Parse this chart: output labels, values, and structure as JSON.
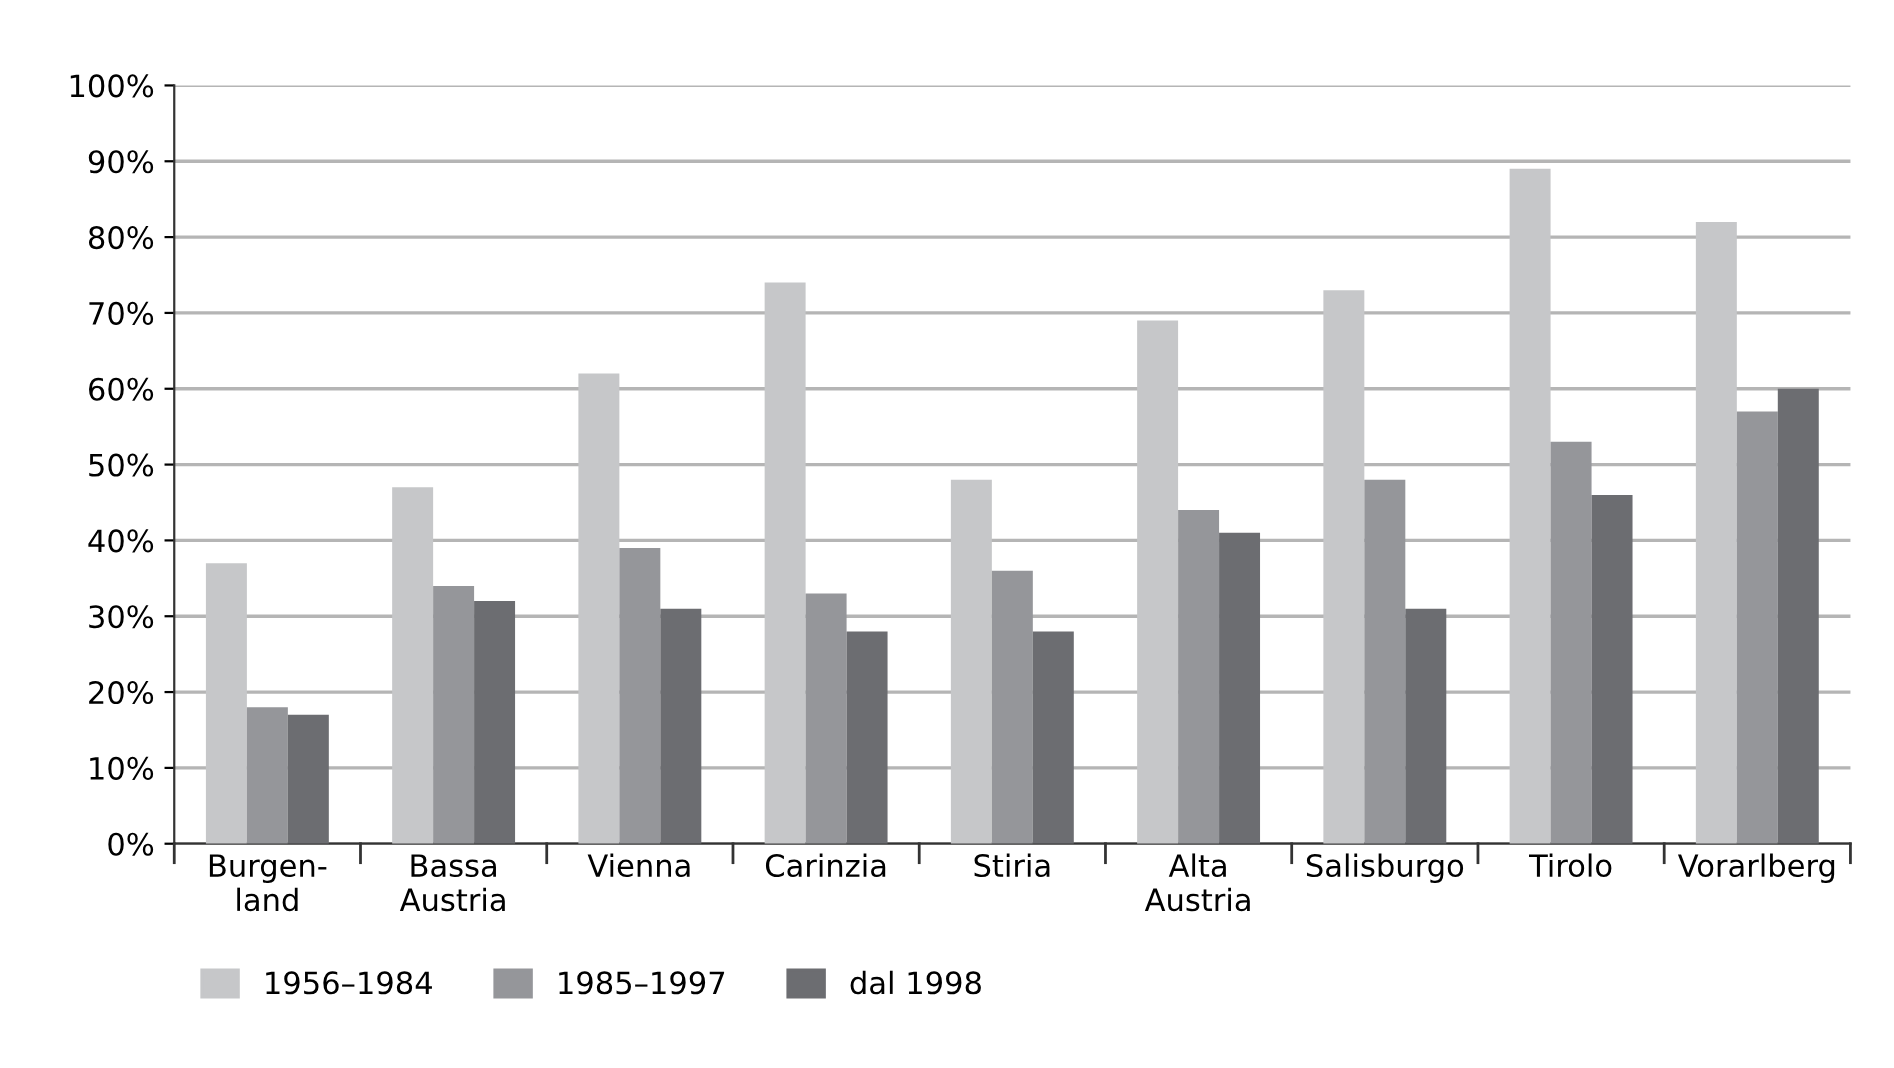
{
  "chart_data": {
    "type": "bar",
    "categories": [
      "Burgen-\nland",
      "Bassa\nAustria",
      "Vienna",
      "Carinzia",
      "Stiria",
      "Alta\nAustria",
      "Salisburgo",
      "Tirolo",
      "Vorarlberg"
    ],
    "series": [
      {
        "name": "1956–1984",
        "color": "#c6c7c9",
        "values": [
          37,
          47,
          62,
          74,
          48,
          69,
          73,
          89,
          82
        ]
      },
      {
        "name": "1985–1997",
        "color": "#95969a",
        "values": [
          18,
          34,
          39,
          33,
          36,
          44,
          48,
          53,
          57
        ]
      },
      {
        "name": "dal 1998",
        "color": "#6c6d71",
        "values": [
          17,
          32,
          31,
          28,
          28,
          41,
          31,
          46,
          60
        ]
      }
    ],
    "ylim": [
      0,
      100
    ],
    "yticks": [
      {
        "value": 0,
        "label": "0%"
      },
      {
        "value": 10,
        "label": "10%"
      },
      {
        "value": 20,
        "label": "20%"
      },
      {
        "value": 30,
        "label": "30%"
      },
      {
        "value": 40,
        "label": "40%"
      },
      {
        "value": 50,
        "label": "50%"
      },
      {
        "value": 60,
        "label": "60%"
      },
      {
        "value": 70,
        "label": "70%"
      },
      {
        "value": 80,
        "label": "80%"
      },
      {
        "value": 90,
        "label": "90%"
      },
      {
        "value": 100,
        "label": "100%"
      }
    ],
    "grid": "y",
    "legend": "bottom left"
  }
}
